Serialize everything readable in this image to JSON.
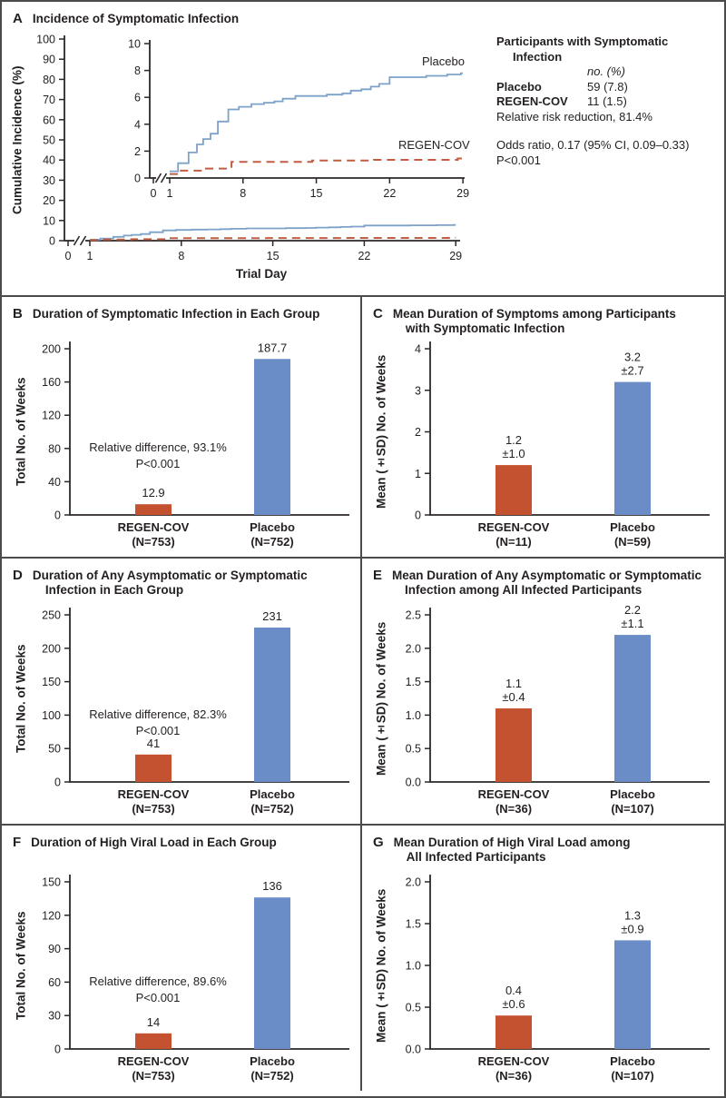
{
  "colors": {
    "regen_bar": "#c4512f",
    "placebo_bar": "#6a8dc7",
    "regen_line": "#c25c42",
    "placebo_line": "#7da2c9",
    "axis": "#2b2726",
    "border": "#4b4b4b"
  },
  "panels": {
    "A": {
      "letter": "A",
      "title_lines": [
        "Incidence of Symptomatic Infection"
      ],
      "ylabel": "Cumulative Incidence (%)",
      "xlabel": "Trial Day",
      "curve_labels": {
        "placebo": "Placebo",
        "regen": "REGEN-COV"
      },
      "stats": {
        "heading_line1": "Participants with Symptomatic",
        "heading_line2": "Infection",
        "col_header": "no. (%)",
        "rows": [
          {
            "label": "Placebo",
            "value": "59 (7.8)"
          },
          {
            "label": "REGEN-COV",
            "value": "11 (1.5)"
          }
        ],
        "rrr": "Relative risk reduction, 81.4%",
        "odds": "Odds ratio, 0.17 (95% CI, 0.09–0.33)",
        "p": "P<0.001"
      }
    },
    "B": {
      "letter": "B",
      "title_lines": [
        "Duration of Symptomatic Infection in Each Group"
      ],
      "ylabel": "Total No. of Weeks"
    },
    "C": {
      "letter": "C",
      "title_lines": [
        "Mean Duration of Symptoms among Participants",
        "with Symptomatic Infection"
      ],
      "ylabel": "Mean (±SD) No. of Weeks"
    },
    "D": {
      "letter": "D",
      "title_lines": [
        "Duration of Any Asymptomatic or Symptomatic",
        "Infection in Each Group"
      ],
      "ylabel": "Total No. of Weeks"
    },
    "E": {
      "letter": "E",
      "title_lines": [
        "Mean Duration of Any Asymptomatic or Symptomatic",
        "Infection among All Infected Participants"
      ],
      "ylabel": "Mean (±SD) No. of Weeks"
    },
    "F": {
      "letter": "F",
      "title_lines": [
        "Duration of High Viral Load in Each Group"
      ],
      "ylabel": "Total No. of Weeks"
    },
    "G": {
      "letter": "G",
      "title_lines": [
        "Mean Duration of High Viral Load among",
        "All Infected Participants"
      ],
      "ylabel": "Mean (±SD) No. of Weeks"
    }
  },
  "chart_data": [
    {
      "id": "A",
      "type": "line",
      "title": "Incidence of Symptomatic Infection",
      "xlabel": "Trial Day",
      "ylabel": "Cumulative Incidence (%)",
      "main_ylim": [
        0,
        100
      ],
      "main_yticks": [
        0,
        10,
        20,
        30,
        40,
        50,
        60,
        70,
        80,
        90,
        100
      ],
      "inset_ylim": [
        0,
        10
      ],
      "inset_yticks": [
        0,
        2,
        4,
        6,
        8,
        10
      ],
      "xticks": [
        0,
        1,
        8,
        15,
        22,
        29
      ],
      "axis_break": true,
      "series": [
        {
          "name": "Placebo",
          "color": "#7da2c9",
          "style": "solid",
          "step": true,
          "x": [
            1,
            1.8,
            2.8,
            3.6,
            4.2,
            4.9,
            5.6,
            6.6,
            7.6,
            8.8,
            10,
            11,
            11.8,
            13,
            16,
            17.5,
            18.3,
            19.3,
            20.2,
            21,
            22,
            25.5,
            27.5,
            28.8
          ],
          "y": [
            0.5,
            1.1,
            1.9,
            2.5,
            2.9,
            3.3,
            4.2,
            5.1,
            5.3,
            5.5,
            5.6,
            5.7,
            5.9,
            6.1,
            6.2,
            6.3,
            6.5,
            6.6,
            6.8,
            7.0,
            7.5,
            7.6,
            7.7,
            7.8
          ]
        },
        {
          "name": "REGEN-COV",
          "color": "#c25c42",
          "style": "dashed",
          "step": true,
          "x": [
            1,
            1.7,
            4.2,
            6.9,
            14.6,
            20.5,
            28.5
          ],
          "y": [
            0.3,
            0.55,
            0.7,
            1.2,
            1.3,
            1.35,
            1.45
          ]
        }
      ]
    },
    {
      "id": "B",
      "type": "bar",
      "title": "Duration of Symptomatic Infection in Each Group",
      "ylabel": "Total No. of Weeks",
      "ylim": [
        0,
        200
      ],
      "yticks": [
        "0",
        "40",
        "80",
        "120",
        "160",
        "200"
      ],
      "bars": [
        {
          "category": "REGEN-COV",
          "n_label": "(N=753)",
          "value": 12.9,
          "value_label": "12.9",
          "sd_label": null,
          "color": "#c4512f"
        },
        {
          "category": "Placebo",
          "n_label": "(N=752)",
          "value": 187.7,
          "value_label": "187.7",
          "sd_label": null,
          "color": "#6a8dc7"
        }
      ],
      "annotation_lines": [
        "Relative difference, 93.1%",
        "P<0.001"
      ]
    },
    {
      "id": "C",
      "type": "bar",
      "title": "Mean Duration of Symptoms among Participants with Symptomatic Infection",
      "ylabel": "Mean (±SD) No. of Weeks",
      "ylim": [
        0,
        4
      ],
      "yticks": [
        "0",
        "1",
        "2",
        "3",
        "4"
      ],
      "bars": [
        {
          "category": "REGEN-COV",
          "n_label": "(N=11)",
          "value": 1.2,
          "value_label": "1.2",
          "sd_label": "±1.0",
          "color": "#c4512f"
        },
        {
          "category": "Placebo",
          "n_label": "(N=59)",
          "value": 3.2,
          "value_label": "3.2",
          "sd_label": "±2.7",
          "color": "#6a8dc7"
        }
      ],
      "annotation_lines": null
    },
    {
      "id": "D",
      "type": "bar",
      "title": "Duration of Any Asymptomatic or Symptomatic Infection in Each Group",
      "ylabel": "Total No. of Weeks",
      "ylim": [
        0,
        250
      ],
      "yticks": [
        "0",
        "50",
        "100",
        "150",
        "200",
        "250"
      ],
      "bars": [
        {
          "category": "REGEN-COV",
          "n_label": "(N=753)",
          "value": 41,
          "value_label": "41",
          "sd_label": null,
          "color": "#c4512f"
        },
        {
          "category": "Placebo",
          "n_label": "(N=752)",
          "value": 231,
          "value_label": "231",
          "sd_label": null,
          "color": "#6a8dc7"
        }
      ],
      "annotation_lines": [
        "Relative difference, 82.3%",
        "P<0.001"
      ]
    },
    {
      "id": "E",
      "type": "bar",
      "title": "Mean Duration of Any Asymptomatic or Symptomatic Infection among All Infected Participants",
      "ylabel": "Mean (±SD) No. of Weeks",
      "ylim": [
        0,
        2.5
      ],
      "yticks": [
        "0.0",
        "0.5",
        "1.0",
        "1.5",
        "2.0",
        "2.5"
      ],
      "bars": [
        {
          "category": "REGEN-COV",
          "n_label": "(N=36)",
          "value": 1.1,
          "value_label": "1.1",
          "sd_label": "±0.4",
          "color": "#c4512f"
        },
        {
          "category": "Placebo",
          "n_label": "(N=107)",
          "value": 2.2,
          "value_label": "2.2",
          "sd_label": "±1.1",
          "color": "#6a8dc7"
        }
      ],
      "annotation_lines": null
    },
    {
      "id": "F",
      "type": "bar",
      "title": "Duration of High Viral Load in Each Group",
      "ylabel": "Total No. of Weeks",
      "ylim": [
        0,
        150
      ],
      "yticks": [
        "0",
        "30",
        "60",
        "90",
        "120",
        "150"
      ],
      "bars": [
        {
          "category": "REGEN-COV",
          "n_label": "(N=753)",
          "value": 14,
          "value_label": "14",
          "sd_label": null,
          "color": "#c4512f"
        },
        {
          "category": "Placebo",
          "n_label": "(N=752)",
          "value": 136,
          "value_label": "136",
          "sd_label": null,
          "color": "#6a8dc7"
        }
      ],
      "annotation_lines": [
        "Relative difference, 89.6%",
        "P<0.001"
      ]
    },
    {
      "id": "G",
      "type": "bar",
      "title": "Mean Duration of High Viral Load among All Infected Participants",
      "ylabel": "Mean (±SD) No. of Weeks",
      "ylim": [
        0,
        2
      ],
      "yticks": [
        "0.0",
        "0.5",
        "1.0",
        "1.5",
        "2.0"
      ],
      "bars": [
        {
          "category": "REGEN-COV",
          "n_label": "(N=36)",
          "value": 0.4,
          "value_label": "0.4",
          "sd_label": "±0.6",
          "color": "#c4512f"
        },
        {
          "category": "Placebo",
          "n_label": "(N=107)",
          "value": 1.3,
          "value_label": "1.3",
          "sd_label": "±0.9",
          "color": "#6a8dc7"
        }
      ],
      "annotation_lines": null
    }
  ]
}
